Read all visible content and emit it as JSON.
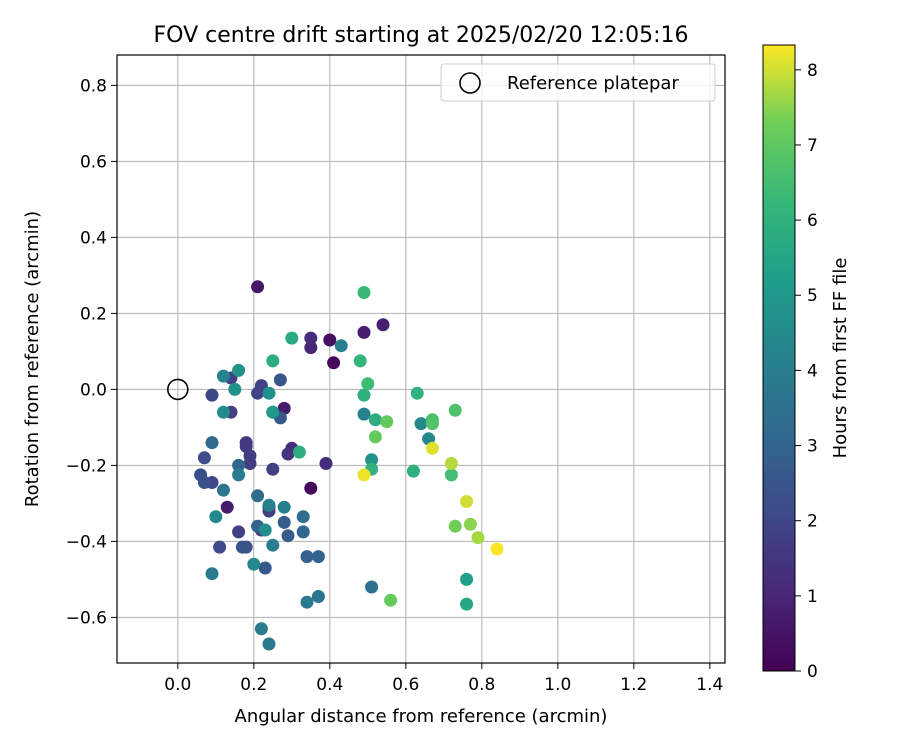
{
  "chart_data": {
    "type": "scatter",
    "title": "FOV centre drift starting at 2025/02/20 12:05:16",
    "xlabel": "Angular distance from reference (arcmin)",
    "ylabel": "Rotation from reference (arcmin)",
    "xlim": [
      -0.16,
      1.44
    ],
    "ylim": [
      -0.72,
      0.88
    ],
    "xticks": [
      0.0,
      0.2,
      0.4,
      0.6,
      0.8,
      1.0,
      1.2,
      1.4
    ],
    "yticks": [
      -0.6,
      -0.4,
      -0.2,
      0.0,
      0.2,
      0.4,
      0.6,
      0.8
    ],
    "xtick_labels": [
      "0.0",
      "0.2",
      "0.4",
      "0.6",
      "0.8",
      "1.0",
      "1.2",
      "1.4"
    ],
    "ytick_labels": [
      "−0.6",
      "−0.4",
      "−0.2",
      "0.0",
      "0.2",
      "0.4",
      "0.6",
      "0.8"
    ],
    "grid": true,
    "colormap": "viridis",
    "colorbar": {
      "label": "Hours from first FF file",
      "range": [
        0,
        8.33
      ],
      "ticks": [
        0,
        1,
        2,
        3,
        4,
        5,
        6,
        7,
        8
      ],
      "tick_labels": [
        "0",
        "1",
        "2",
        "3",
        "4",
        "5",
        "6",
        "7",
        "8"
      ]
    },
    "legend": {
      "placement": "top-right",
      "entries": [
        "Reference platepar"
      ]
    },
    "reference_point": {
      "x": 0.0,
      "y": 0.0
    },
    "points": [
      {
        "x": 0.35,
        "y": -0.26,
        "c": 0.2
      },
      {
        "x": 0.41,
        "y": 0.07,
        "c": 0.2
      },
      {
        "x": 0.4,
        "y": 0.13,
        "c": 0.4
      },
      {
        "x": 0.21,
        "y": 0.27,
        "c": 0.6
      },
      {
        "x": 0.13,
        "y": -0.31,
        "c": 0.7
      },
      {
        "x": 0.28,
        "y": -0.05,
        "c": 0.7
      },
      {
        "x": 0.49,
        "y": 0.15,
        "c": 0.8
      },
      {
        "x": 0.54,
        "y": 0.17,
        "c": 0.8
      },
      {
        "x": 0.24,
        "y": -0.31,
        "c": 1.0
      },
      {
        "x": 0.35,
        "y": 0.11,
        "c": 1.0
      },
      {
        "x": 0.35,
        "y": 0.135,
        "c": 1.2
      },
      {
        "x": 0.39,
        "y": -0.195,
        "c": 1.2
      },
      {
        "x": 0.3,
        "y": -0.155,
        "c": 1.3
      },
      {
        "x": 0.29,
        "y": -0.17,
        "c": 1.4
      },
      {
        "x": 0.22,
        "y": -0.37,
        "c": 1.4
      },
      {
        "x": 0.18,
        "y": -0.14,
        "c": 1.5
      },
      {
        "x": 0.18,
        "y": -0.15,
        "c": 1.6
      },
      {
        "x": 0.19,
        "y": -0.175,
        "c": 1.7
      },
      {
        "x": 0.19,
        "y": -0.195,
        "c": 1.7
      },
      {
        "x": 0.16,
        "y": -0.375,
        "c": 1.8
      },
      {
        "x": 0.14,
        "y": -0.06,
        "c": 1.8
      },
      {
        "x": 0.25,
        "y": -0.21,
        "c": 1.8
      },
      {
        "x": 0.24,
        "y": -0.32,
        "c": 1.8
      },
      {
        "x": 0.21,
        "y": -0.01,
        "c": 1.9
      },
      {
        "x": 0.22,
        "y": 0.01,
        "c": 1.9
      },
      {
        "x": 0.14,
        "y": 0.03,
        "c": 1.9
      },
      {
        "x": 0.09,
        "y": -0.015,
        "c": 2.0
      },
      {
        "x": 0.09,
        "y": -0.245,
        "c": 2.0
      },
      {
        "x": 0.11,
        "y": -0.415,
        "c": 2.1
      },
      {
        "x": 0.07,
        "y": -0.18,
        "c": 2.2
      },
      {
        "x": 0.06,
        "y": -0.225,
        "c": 2.3
      },
      {
        "x": 0.07,
        "y": -0.245,
        "c": 2.4
      },
      {
        "x": 0.17,
        "y": -0.415,
        "c": 2.4
      },
      {
        "x": 0.18,
        "y": -0.415,
        "c": 2.5
      },
      {
        "x": 0.27,
        "y": 0.025,
        "c": 2.5
      },
      {
        "x": 0.27,
        "y": -0.075,
        "c": 2.6
      },
      {
        "x": 0.23,
        "y": -0.47,
        "c": 2.6
      },
      {
        "x": 0.29,
        "y": -0.385,
        "c": 2.7
      },
      {
        "x": 0.28,
        "y": -0.35,
        "c": 2.8
      },
      {
        "x": 0.21,
        "y": -0.36,
        "c": 2.9
      },
      {
        "x": 0.34,
        "y": -0.44,
        "c": 2.9
      },
      {
        "x": 0.37,
        "y": -0.44,
        "c": 3.0
      },
      {
        "x": 0.33,
        "y": -0.375,
        "c": 3.1
      },
      {
        "x": 0.16,
        "y": -0.2,
        "c": 3.1
      },
      {
        "x": 0.09,
        "y": -0.14,
        "c": 3.2
      },
      {
        "x": 0.21,
        "y": -0.28,
        "c": 3.3
      },
      {
        "x": 0.33,
        "y": -0.335,
        "c": 3.4
      },
      {
        "x": 0.51,
        "y": -0.52,
        "c": 3.5
      },
      {
        "x": 0.25,
        "y": -0.06,
        "c": 3.6
      },
      {
        "x": 0.12,
        "y": -0.265,
        "c": 3.7
      },
      {
        "x": 0.37,
        "y": -0.545,
        "c": 3.7
      },
      {
        "x": 0.34,
        "y": -0.56,
        "c": 3.8
      },
      {
        "x": 0.24,
        "y": -0.67,
        "c": 3.8
      },
      {
        "x": 0.09,
        "y": -0.485,
        "c": 3.8
      },
      {
        "x": 0.16,
        "y": -0.225,
        "c": 3.9
      },
      {
        "x": 0.22,
        "y": -0.63,
        "c": 3.9
      },
      {
        "x": 0.25,
        "y": -0.41,
        "c": 4.0
      },
      {
        "x": 0.43,
        "y": 0.115,
        "c": 4.0
      },
      {
        "x": 0.24,
        "y": -0.305,
        "c": 4.1
      },
      {
        "x": 0.28,
        "y": -0.31,
        "c": 4.1
      },
      {
        "x": 0.49,
        "y": -0.065,
        "c": 4.2
      },
      {
        "x": 0.12,
        "y": 0.035,
        "c": 4.2
      },
      {
        "x": 0.66,
        "y": -0.13,
        "c": 4.3
      },
      {
        "x": 0.1,
        "y": -0.335,
        "c": 4.4
      },
      {
        "x": 0.64,
        "y": -0.09,
        "c": 4.4
      },
      {
        "x": 0.2,
        "y": -0.46,
        "c": 4.4
      },
      {
        "x": 0.12,
        "y": -0.06,
        "c": 4.5
      },
      {
        "x": 0.23,
        "y": -0.37,
        "c": 4.6
      },
      {
        "x": 0.15,
        "y": 0.0,
        "c": 4.7
      },
      {
        "x": 0.24,
        "y": -0.01,
        "c": 4.7
      },
      {
        "x": 0.51,
        "y": -0.185,
        "c": 4.8
      },
      {
        "x": 0.16,
        "y": 0.05,
        "c": 4.8
      },
      {
        "x": 0.25,
        "y": -0.06,
        "c": 5.0
      },
      {
        "x": 0.76,
        "y": -0.5,
        "c": 5.3
      },
      {
        "x": 0.76,
        "y": -0.565,
        "c": 5.6
      },
      {
        "x": 0.3,
        "y": 0.135,
        "c": 5.7
      },
      {
        "x": 0.25,
        "y": 0.075,
        "c": 5.8
      },
      {
        "x": 0.32,
        "y": -0.165,
        "c": 5.8
      },
      {
        "x": 0.52,
        "y": -0.08,
        "c": 5.8
      },
      {
        "x": 0.49,
        "y": -0.015,
        "c": 5.9
      },
      {
        "x": 0.62,
        "y": -0.215,
        "c": 5.9
      },
      {
        "x": 0.63,
        "y": -0.01,
        "c": 6.0
      },
      {
        "x": 0.51,
        "y": -0.21,
        "c": 6.0
      },
      {
        "x": 0.48,
        "y": 0.075,
        "c": 6.2
      },
      {
        "x": 0.49,
        "y": 0.255,
        "c": 6.3
      },
      {
        "x": 0.5,
        "y": 0.015,
        "c": 6.4
      },
      {
        "x": 0.72,
        "y": -0.225,
        "c": 6.5
      },
      {
        "x": 0.67,
        "y": -0.08,
        "c": 6.6
      },
      {
        "x": 0.73,
        "y": -0.055,
        "c": 6.7
      },
      {
        "x": 0.67,
        "y": -0.09,
        "c": 6.8
      },
      {
        "x": 0.52,
        "y": -0.125,
        "c": 7.1
      },
      {
        "x": 0.55,
        "y": -0.085,
        "c": 7.1
      },
      {
        "x": 0.56,
        "y": -0.555,
        "c": 7.1
      },
      {
        "x": 0.73,
        "y": -0.36,
        "c": 7.3
      },
      {
        "x": 0.77,
        "y": -0.355,
        "c": 7.5
      },
      {
        "x": 0.79,
        "y": -0.39,
        "c": 7.7
      },
      {
        "x": 0.72,
        "y": -0.195,
        "c": 7.8
      },
      {
        "x": 0.76,
        "y": -0.295,
        "c": 8.0
      },
      {
        "x": 0.67,
        "y": -0.155,
        "c": 8.1
      },
      {
        "x": 0.49,
        "y": -0.225,
        "c": 8.2
      },
      {
        "x": 0.84,
        "y": -0.42,
        "c": 8.3
      }
    ]
  }
}
